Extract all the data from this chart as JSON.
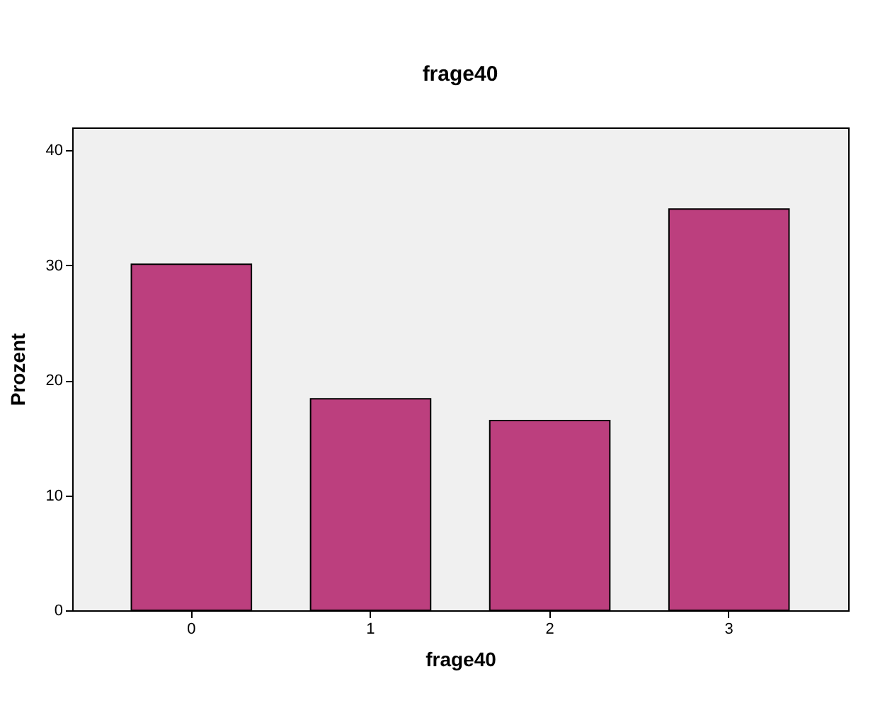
{
  "chart_data": {
    "type": "bar",
    "title": "frage40",
    "xlabel": "frage40",
    "ylabel": "Prozent",
    "categories": [
      "0",
      "1",
      "2",
      "3"
    ],
    "values": [
      30.1,
      18.4,
      16.5,
      34.9
    ],
    "color": "#bc3f7e",
    "ylim": [
      0,
      42
    ],
    "yticks": [
      0,
      10,
      20,
      30,
      40
    ],
    "grid": false
  }
}
